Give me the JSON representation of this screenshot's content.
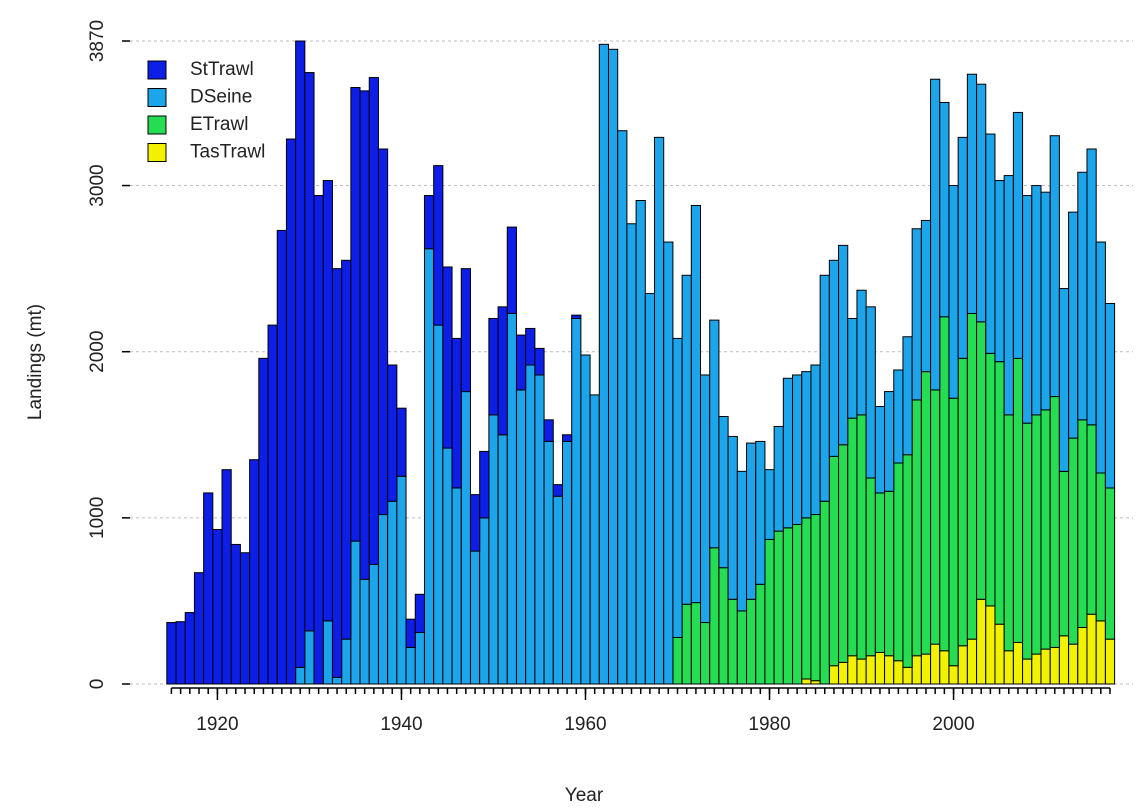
{
  "chart_data": {
    "type": "stacked_bar",
    "x_label": "Year",
    "y_label": "Landings (mt)",
    "x": [
      1915,
      1916,
      1917,
      1918,
      1919,
      1920,
      1921,
      1922,
      1923,
      1924,
      1925,
      1926,
      1927,
      1928,
      1929,
      1930,
      1931,
      1932,
      1933,
      1934,
      1935,
      1936,
      1937,
      1938,
      1939,
      1940,
      1941,
      1942,
      1943,
      1944,
      1945,
      1946,
      1947,
      1948,
      1949,
      1950,
      1951,
      1952,
      1953,
      1954,
      1955,
      1956,
      1957,
      1958,
      1959,
      1960,
      1961,
      1962,
      1963,
      1964,
      1965,
      1966,
      1967,
      1968,
      1969,
      1970,
      1971,
      1972,
      1973,
      1974,
      1975,
      1976,
      1977,
      1978,
      1979,
      1980,
      1981,
      1982,
      1983,
      1984,
      1985,
      1986,
      1987,
      1988,
      1989,
      1990,
      1991,
      1992,
      1993,
      1994,
      1995,
      1996,
      1997,
      1998,
      1999,
      2000,
      2001,
      2002,
      2003,
      2004,
      2005,
      2006,
      2007,
      2008,
      2009,
      2010,
      2011,
      2012,
      2013,
      2014,
      2015,
      2016,
      2017
    ],
    "series": [
      {
        "name": "StTrawl",
        "color": "#0d1ee6",
        "values": [
          370,
          375,
          430,
          670,
          1150,
          930,
          1290,
          840,
          790,
          1350,
          1960,
          2160,
          2730,
          3280,
          3770,
          3360,
          2940,
          2650,
          2460,
          2280,
          2730,
          2940,
          2930,
          2200,
          820,
          410,
          170,
          230,
          320,
          960,
          1090,
          900,
          740,
          340,
          400,
          580,
          770,
          520,
          330,
          220,
          160,
          130,
          70,
          40,
          20,
          0,
          0,
          0,
          0,
          0,
          0,
          0,
          0,
          0,
          0,
          0,
          0,
          0,
          0,
          0,
          0,
          0,
          0,
          0,
          0,
          0,
          0,
          0,
          0,
          0,
          0,
          0,
          0,
          0,
          0,
          0,
          0,
          0,
          0,
          0,
          0,
          0,
          0,
          0,
          0,
          0,
          0,
          0,
          0,
          0,
          0,
          0,
          0,
          0,
          0,
          0,
          0,
          0,
          0,
          0,
          0,
          0,
          0
        ]
      },
      {
        "name": "DSeine",
        "color": "#1ca5ea",
        "values": [
          0,
          0,
          0,
          0,
          0,
          0,
          0,
          0,
          0,
          0,
          0,
          0,
          0,
          0,
          100,
          320,
          0,
          380,
          40,
          270,
          860,
          630,
          720,
          1020,
          1100,
          1250,
          220,
          310,
          2620,
          2160,
          1420,
          1180,
          1760,
          800,
          1000,
          1620,
          1500,
          2230,
          1770,
          1920,
          1860,
          1460,
          1130,
          1460,
          2200,
          1980,
          1740,
          3850,
          3820,
          3330,
          2770,
          2910,
          2350,
          3290,
          2660,
          1800,
          1980,
          2390,
          1490,
          1370,
          910,
          980,
          840,
          940,
          860,
          420,
          630,
          900,
          900,
          880,
          900,
          1360,
          1180,
          1200,
          600,
          750,
          1030,
          520,
          600,
          560,
          710,
          1030,
          910,
          1870,
          1290,
          1280,
          1330,
          1440,
          1430,
          1320,
          1090,
          1440,
          1480,
          1370,
          1380,
          1310,
          1570,
          1100,
          1360,
          1490,
          1660,
          1390,
          1110
        ]
      },
      {
        "name": "ETrawl",
        "color": "#25dc52",
        "values": [
          0,
          0,
          0,
          0,
          0,
          0,
          0,
          0,
          0,
          0,
          0,
          0,
          0,
          0,
          0,
          0,
          0,
          0,
          0,
          0,
          0,
          0,
          0,
          0,
          0,
          0,
          0,
          0,
          0,
          0,
          0,
          0,
          0,
          0,
          0,
          0,
          0,
          0,
          0,
          0,
          0,
          0,
          0,
          0,
          0,
          0,
          0,
          0,
          0,
          0,
          0,
          0,
          0,
          0,
          0,
          280,
          480,
          490,
          370,
          820,
          700,
          510,
          440,
          510,
          600,
          870,
          920,
          940,
          960,
          970,
          1000,
          1100,
          1260,
          1310,
          1430,
          1470,
          1070,
          960,
          990,
          1190,
          1280,
          1540,
          1700,
          1530,
          2010,
          1610,
          1730,
          1960,
          1670,
          1520,
          1580,
          1420,
          1710,
          1420,
          1440,
          1440,
          1510,
          990,
          1240,
          1250,
          1140,
          890,
          910
        ]
      },
      {
        "name": "TasTrawl",
        "color": "#f2f200",
        "values": [
          0,
          0,
          0,
          0,
          0,
          0,
          0,
          0,
          0,
          0,
          0,
          0,
          0,
          0,
          0,
          0,
          0,
          0,
          0,
          0,
          0,
          0,
          0,
          0,
          0,
          0,
          0,
          0,
          0,
          0,
          0,
          0,
          0,
          0,
          0,
          0,
          0,
          0,
          0,
          0,
          0,
          0,
          0,
          0,
          0,
          0,
          0,
          0,
          0,
          0,
          0,
          0,
          0,
          0,
          0,
          0,
          0,
          0,
          0,
          0,
          0,
          0,
          0,
          0,
          0,
          0,
          0,
          0,
          0,
          30,
          20,
          0,
          110,
          130,
          170,
          150,
          170,
          190,
          170,
          140,
          100,
          170,
          180,
          240,
          200,
          110,
          230,
          270,
          510,
          470,
          360,
          200,
          250,
          150,
          180,
          210,
          220,
          290,
          240,
          340,
          420,
          380,
          270
        ]
      }
    ],
    "xlim": [
      1910.5,
      2019.5
    ],
    "xticks": [
      1920,
      1940,
      1960,
      1980,
      2000
    ],
    "ylim": [
      0,
      3870
    ],
    "yticks": [
      0,
      1000,
      2000,
      3000,
      3870
    ],
    "grid": true,
    "legend": "top-left"
  }
}
